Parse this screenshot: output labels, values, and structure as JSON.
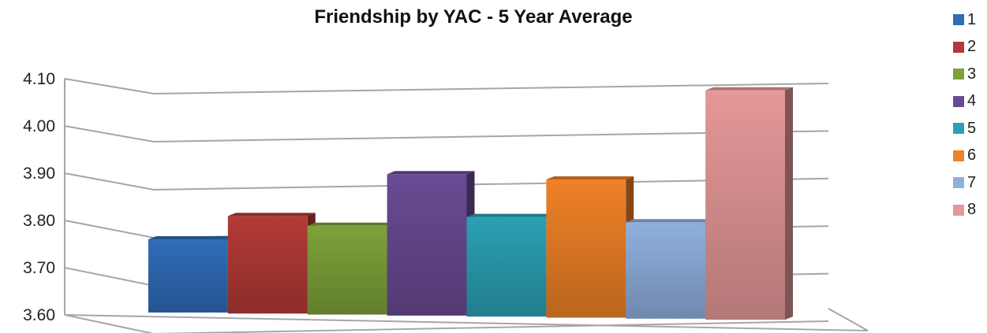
{
  "chart_data": {
    "type": "bar",
    "title": "Friendship by YAC - 5 Year Average",
    "categories": [
      "1",
      "2",
      "3",
      "4",
      "5",
      "6",
      "7",
      "8"
    ],
    "values": [
      3.76,
      3.81,
      3.79,
      3.9,
      3.81,
      3.89,
      3.8,
      4.08
    ],
    "colors": [
      "#2f6db8",
      "#b33a36",
      "#7ea23a",
      "#6a4a94",
      "#2aa0b4",
      "#ef8127",
      "#8fb0de",
      "#e59898"
    ],
    "ylim": [
      3.6,
      4.1
    ],
    "yticks": [
      "3.60",
      "3.70",
      "3.80",
      "3.90",
      "4.00",
      "4.10"
    ],
    "grid": true,
    "legend_position": "right"
  }
}
